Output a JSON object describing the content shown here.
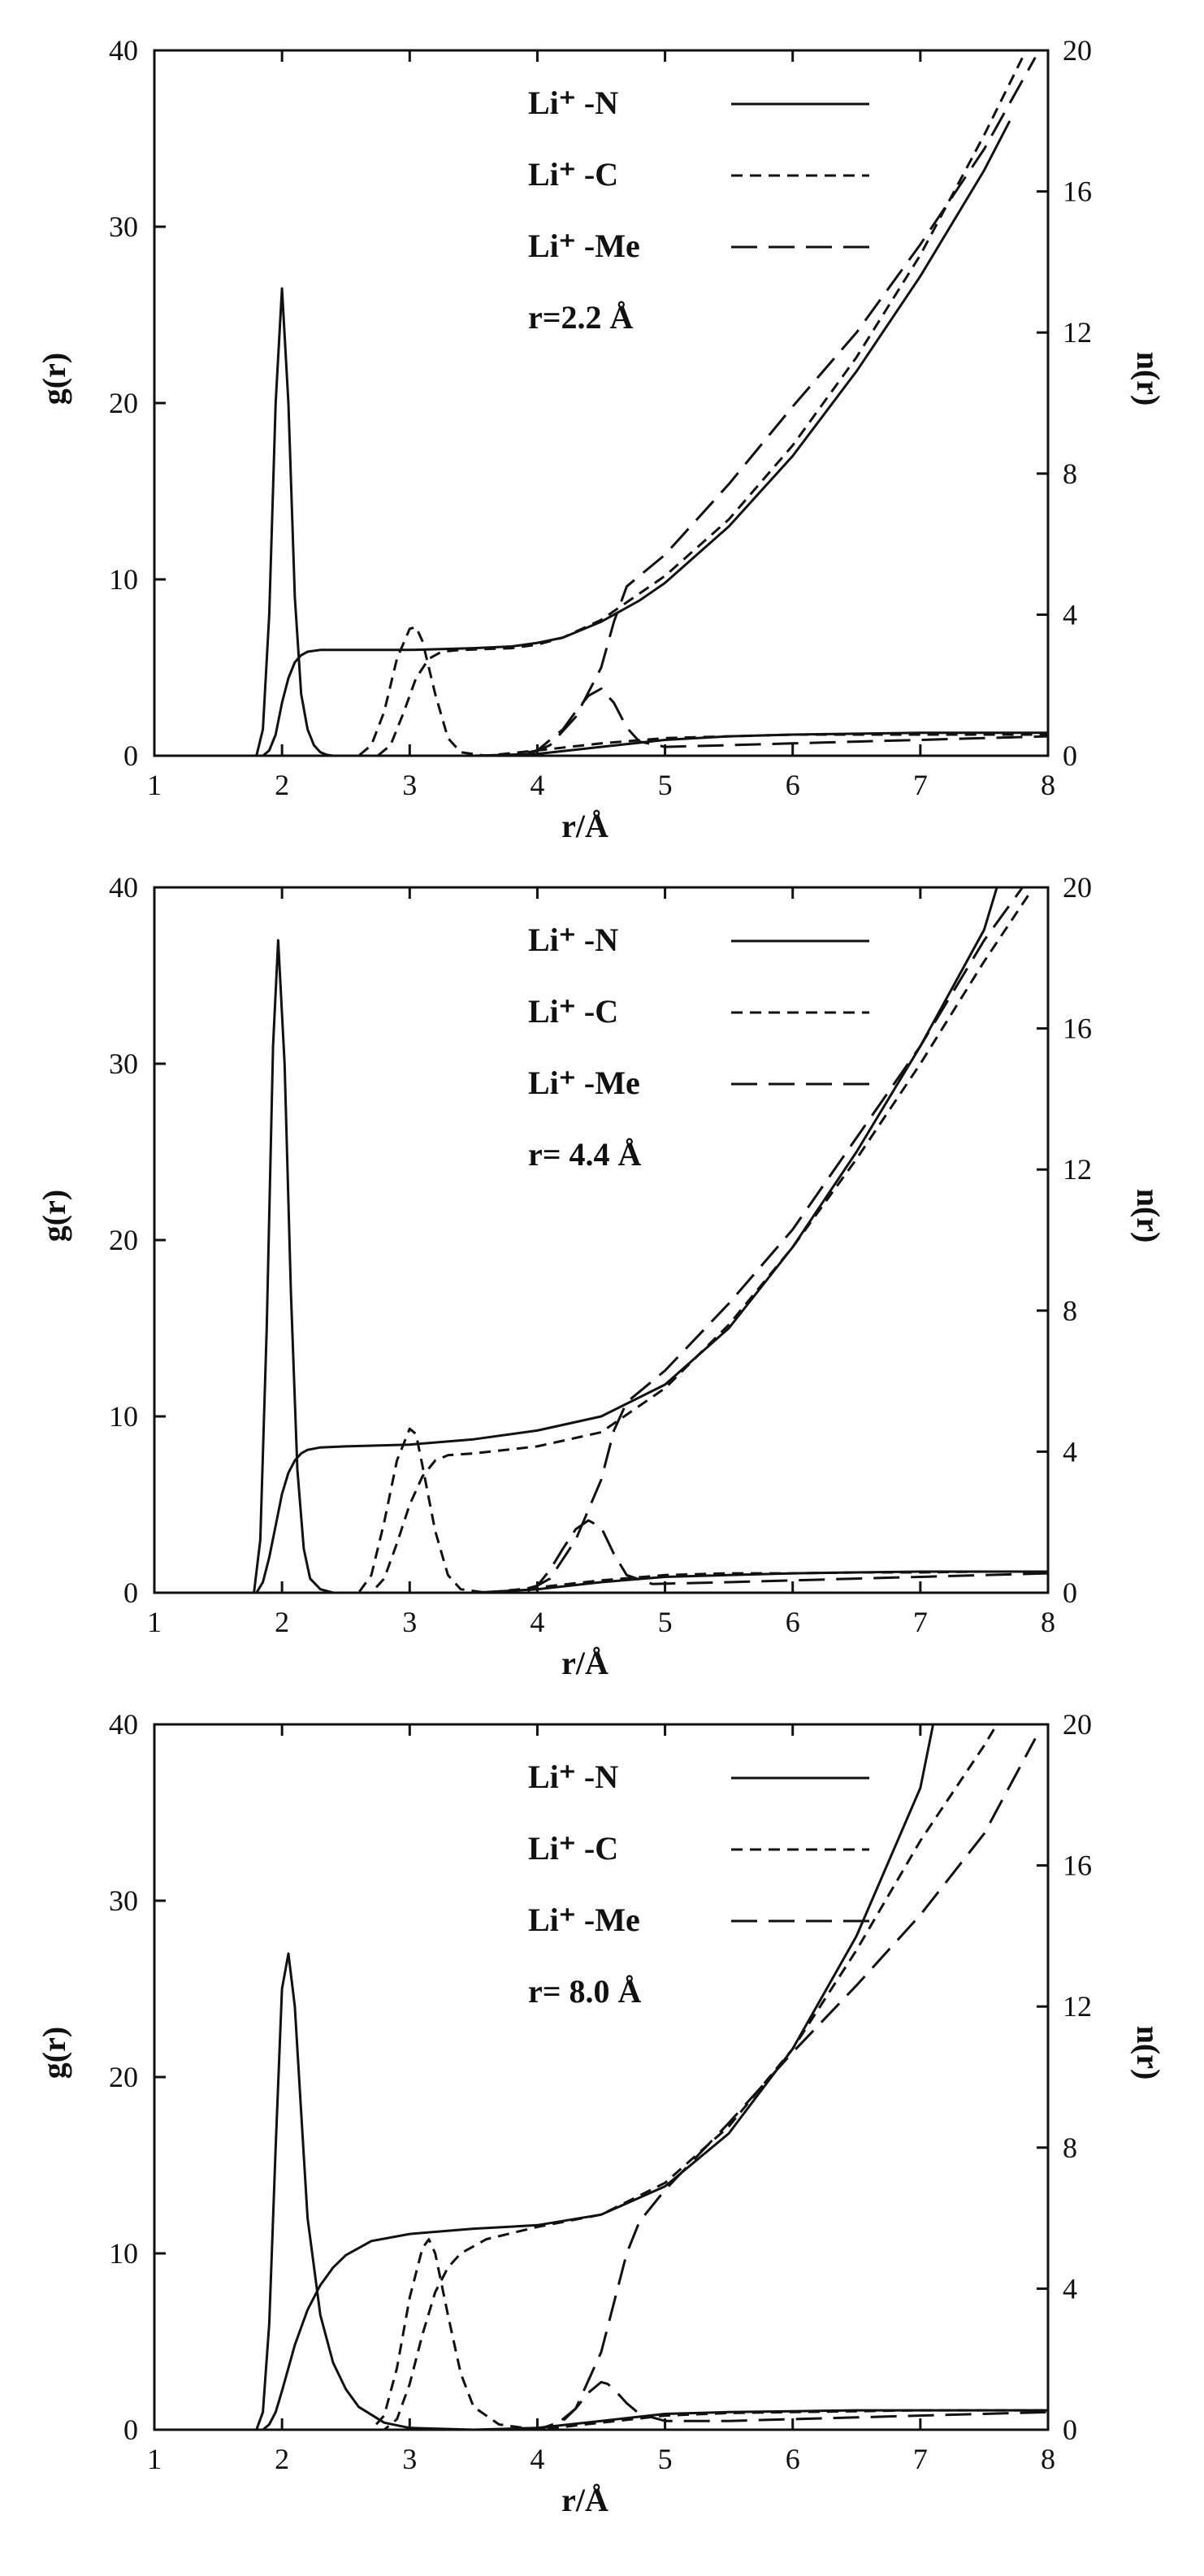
{
  "chart_data": [
    {
      "type": "line",
      "xlabel": "r/Å",
      "ylabel_left": "g(r)",
      "ylabel_right": "n(r)",
      "xlim": [
        1,
        8
      ],
      "ylim_left": [
        0,
        40
      ],
      "ylim_right": [
        0,
        20
      ],
      "x_ticks": [
        "1",
        "2",
        "3",
        "4",
        "5",
        "6",
        "7",
        "8"
      ],
      "y_left_ticks": [
        "0",
        "10",
        "20",
        "30",
        "40"
      ],
      "y_right_ticks": [
        "0",
        "4",
        "8",
        "12",
        "16",
        "20"
      ],
      "annotation": "r=2.2 Å",
      "grid": false,
      "legend_position": "top-center",
      "series": [
        {
          "name": "Li⁺ -N",
          "style": "solid",
          "axis": "left",
          "kind": "g(r)",
          "x": [
            1.0,
            1.8,
            1.85,
            1.9,
            1.95,
            2.0,
            2.05,
            2.1,
            2.15,
            2.2,
            2.25,
            2.3,
            2.35,
            2.4,
            2.5,
            2.6,
            3.0,
            3.5,
            4.0,
            4.5,
            5.0,
            5.5,
            6.0,
            6.5,
            7.0,
            7.5,
            8.0
          ],
          "y": [
            0,
            0,
            1.5,
            8,
            20,
            26.5,
            20,
            9,
            3.5,
            1.5,
            0.6,
            0.2,
            0.05,
            0,
            0,
            0,
            0,
            0,
            0.1,
            0.5,
            0.9,
            1.1,
            1.2,
            1.25,
            1.3,
            1.3,
            1.3
          ]
        },
        {
          "name": "Li⁺ -N",
          "style": "solid",
          "axis": "right",
          "kind": "n(r)",
          "x": [
            1.0,
            1.85,
            1.9,
            1.95,
            2.0,
            2.05,
            2.1,
            2.15,
            2.2,
            2.3,
            2.5,
            3.0,
            3.5,
            3.8,
            4.0,
            4.2,
            4.5,
            4.8,
            5.0,
            5.5,
            6.0,
            6.5,
            7.0,
            7.5,
            7.7
          ],
          "y": [
            0,
            0,
            0.15,
            0.6,
            1.5,
            2.2,
            2.65,
            2.85,
            2.95,
            3.0,
            3.0,
            3.0,
            3.05,
            3.1,
            3.2,
            3.35,
            3.8,
            4.4,
            4.9,
            6.5,
            8.5,
            10.9,
            13.6,
            16.6,
            18.0
          ]
        },
        {
          "name": "Li⁺ -C",
          "style": "short-dash",
          "axis": "left",
          "kind": "g(r)",
          "x": [
            1.0,
            2.6,
            2.7,
            2.8,
            2.9,
            3.0,
            3.05,
            3.1,
            3.2,
            3.3,
            3.4,
            3.6,
            4.0,
            4.5,
            5.0,
            5.5,
            6.0,
            6.5,
            7.0,
            7.5,
            8.0
          ],
          "y": [
            0,
            0,
            0.6,
            2.5,
            5.5,
            7.2,
            7.3,
            6.5,
            3.5,
            1.0,
            0.2,
            0,
            0.3,
            0.7,
            1.0,
            1.1,
            1.2,
            1.2,
            1.2,
            1.2,
            1.2
          ]
        },
        {
          "name": "Li⁺ -C",
          "style": "short-dash",
          "axis": "right",
          "kind": "n(r)",
          "x": [
            1.0,
            2.75,
            2.85,
            2.95,
            3.05,
            3.15,
            3.25,
            3.4,
            3.8,
            4.0,
            4.2,
            4.5,
            4.8,
            5.0,
            5.5,
            6.0,
            6.5,
            7.0,
            7.5,
            7.8
          ],
          "y": [
            0,
            0,
            0.3,
            1.2,
            2.2,
            2.75,
            2.95,
            3.0,
            3.05,
            3.15,
            3.35,
            3.85,
            4.6,
            5.1,
            6.7,
            8.8,
            11.3,
            14.2,
            17.6,
            19.8
          ]
        },
        {
          "name": "Li⁺ -Me",
          "style": "long-dash",
          "axis": "left",
          "kind": "g(r)",
          "x": [
            1.0,
            3.8,
            4.0,
            4.2,
            4.3,
            4.4,
            4.5,
            4.6,
            4.7,
            4.8,
            5.0,
            5.5,
            6.0,
            6.5,
            7.0,
            7.5,
            8.0
          ],
          "y": [
            0,
            0,
            0.3,
            1.5,
            2.5,
            3.4,
            3.8,
            3.0,
            1.6,
            0.8,
            0.5,
            0.6,
            0.7,
            0.8,
            0.9,
            1.0,
            1.1
          ]
        },
        {
          "name": "Li⁺ -Me",
          "style": "long-dash",
          "axis": "right",
          "kind": "n(r)",
          "x": [
            1.0,
            3.9,
            4.1,
            4.3,
            4.5,
            4.6,
            4.7,
            5.0,
            5.5,
            6.0,
            6.5,
            7.0,
            7.5,
            7.9
          ],
          "y": [
            0,
            0,
            0.3,
            1.1,
            2.5,
            3.8,
            4.8,
            5.7,
            7.7,
            9.9,
            12.0,
            14.5,
            17.2,
            19.8
          ]
        }
      ]
    },
    {
      "type": "line",
      "xlabel": "r/Å",
      "ylabel_left": "g(r)",
      "ylabel_right": "n(r)",
      "xlim": [
        1,
        8
      ],
      "ylim_left": [
        0,
        40
      ],
      "ylim_right": [
        0,
        20
      ],
      "x_ticks": [
        "1",
        "2",
        "3",
        "4",
        "5",
        "6",
        "7",
        "8"
      ],
      "y_left_ticks": [
        "0",
        "10",
        "20",
        "30",
        "40"
      ],
      "y_right_ticks": [
        "0",
        "4",
        "8",
        "12",
        "16",
        "20"
      ],
      "annotation": "r= 4.4 Å",
      "grid": false,
      "legend_position": "top-center",
      "series": [
        {
          "name": "Li⁺ -N",
          "style": "solid",
          "axis": "left",
          "kind": "g(r)",
          "x": [
            1.0,
            1.78,
            1.83,
            1.88,
            1.93,
            1.97,
            2.02,
            2.07,
            2.12,
            2.17,
            2.22,
            2.3,
            2.4,
            2.5,
            3.0,
            3.5,
            4.0,
            4.5,
            5.0,
            5.5,
            6.0,
            6.5,
            7.0,
            7.5,
            8.0
          ],
          "y": [
            0,
            0,
            3,
            15,
            31,
            37,
            30,
            17,
            7,
            2.5,
            0.8,
            0.2,
            0,
            0,
            0,
            0,
            0.2,
            0.6,
            0.9,
            1.0,
            1.1,
            1.15,
            1.2,
            1.2,
            1.2
          ]
        },
        {
          "name": "Li⁺ -N",
          "style": "solid",
          "axis": "right",
          "kind": "n(r)",
          "x": [
            1.0,
            1.8,
            1.85,
            1.9,
            1.95,
            2.0,
            2.05,
            2.1,
            2.15,
            2.2,
            2.3,
            2.5,
            3.0,
            3.5,
            4.0,
            4.5,
            5.0,
            5.5,
            6.0,
            6.5,
            7.0,
            7.5,
            7.6
          ],
          "y": [
            0,
            0,
            0.3,
            1.0,
            1.9,
            2.8,
            3.4,
            3.75,
            3.95,
            4.05,
            4.12,
            4.15,
            4.2,
            4.35,
            4.6,
            5.0,
            5.9,
            7.5,
            9.8,
            12.5,
            15.5,
            18.8,
            20.0
          ]
        },
        {
          "name": "Li⁺ -C",
          "style": "short-dash",
          "axis": "left",
          "kind": "g(r)",
          "x": [
            1.0,
            2.6,
            2.7,
            2.8,
            2.9,
            3.0,
            3.05,
            3.1,
            3.2,
            3.3,
            3.4,
            3.6,
            4.0,
            4.5,
            5.0,
            5.5,
            6.0,
            6.5,
            7.0,
            7.5,
            8.0
          ],
          "y": [
            0,
            0,
            1.0,
            4.0,
            7.5,
            9.3,
            9.0,
            7.2,
            3.5,
            1.0,
            0.2,
            0,
            0.3,
            0.7,
            1.0,
            1.1,
            1.1,
            1.15,
            1.15,
            1.2,
            1.2
          ]
        },
        {
          "name": "Li⁺ -C",
          "style": "short-dash",
          "axis": "right",
          "kind": "n(r)",
          "x": [
            1.0,
            2.7,
            2.8,
            2.9,
            3.0,
            3.1,
            3.2,
            3.3,
            3.5,
            4.0,
            4.5,
            5.0,
            5.5,
            6.0,
            6.5,
            7.0,
            7.5,
            7.85
          ],
          "y": [
            0,
            0,
            0.4,
            1.4,
            2.5,
            3.3,
            3.75,
            3.9,
            3.95,
            4.15,
            4.55,
            5.8,
            7.6,
            9.8,
            12.3,
            15.0,
            17.9,
            19.8
          ]
        },
        {
          "name": "Li⁺ -Me",
          "style": "long-dash",
          "axis": "left",
          "kind": "g(r)",
          "x": [
            1.0,
            3.8,
            4.0,
            4.1,
            4.2,
            4.3,
            4.4,
            4.5,
            4.6,
            4.7,
            4.9,
            5.5,
            6.0,
            6.5,
            7.0,
            7.5,
            8.0
          ],
          "y": [
            0,
            0,
            0.4,
            1.3,
            2.5,
            3.6,
            4.1,
            3.7,
            2.2,
            1.0,
            0.5,
            0.6,
            0.7,
            0.8,
            0.9,
            1.0,
            1.1
          ]
        },
        {
          "name": "Li⁺ -Me",
          "style": "long-dash",
          "axis": "right",
          "kind": "n(r)",
          "x": [
            1.0,
            3.9,
            4.1,
            4.3,
            4.5,
            4.6,
            4.7,
            5.0,
            5.5,
            6.0,
            6.5,
            7.0,
            7.5,
            7.8
          ],
          "y": [
            0,
            0,
            0.4,
            1.5,
            3.2,
            4.6,
            5.4,
            6.3,
            8.2,
            10.3,
            12.9,
            15.5,
            18.5,
            20.0
          ]
        }
      ]
    },
    {
      "type": "line",
      "xlabel": "r/Å",
      "ylabel_left": "g(r)",
      "ylabel_right": "n(r)",
      "xlim": [
        1,
        8
      ],
      "ylim_left": [
        0,
        40
      ],
      "ylim_right": [
        0,
        20
      ],
      "x_ticks": [
        "1",
        "2",
        "3",
        "4",
        "5",
        "6",
        "7",
        "8"
      ],
      "y_left_ticks": [
        "0",
        "10",
        "20",
        "30",
        "40"
      ],
      "y_right_ticks": [
        "0",
        "4",
        "8",
        "12",
        "16",
        "20"
      ],
      "annotation": "r= 8.0 Å",
      "grid": false,
      "legend_position": "top-center",
      "series": [
        {
          "name": "Li⁺ -N",
          "style": "solid",
          "axis": "left",
          "kind": "g(r)",
          "x": [
            1.0,
            1.8,
            1.85,
            1.9,
            1.95,
            2.0,
            2.05,
            2.1,
            2.15,
            2.2,
            2.3,
            2.4,
            2.5,
            2.6,
            2.8,
            3.0,
            3.5,
            4.0,
            4.5,
            5.0,
            5.5,
            6.0,
            6.5,
            7.0,
            7.5,
            8.0
          ],
          "y": [
            0,
            0,
            1.0,
            6.0,
            16.0,
            25.0,
            27.0,
            24.0,
            18.0,
            12.0,
            6.5,
            3.8,
            2.3,
            1.3,
            0.4,
            0.1,
            0,
            0.1,
            0.5,
            0.9,
            1.0,
            1.05,
            1.1,
            1.1,
            1.1,
            1.1
          ]
        },
        {
          "name": "Li⁺ -N",
          "style": "solid",
          "axis": "right",
          "kind": "n(r)",
          "x": [
            1.0,
            1.85,
            1.9,
            1.95,
            2.0,
            2.1,
            2.2,
            2.3,
            2.4,
            2.5,
            2.7,
            3.0,
            3.5,
            4.0,
            4.5,
            5.0,
            5.5,
            6.0,
            6.5,
            7.0,
            7.1
          ],
          "y": [
            0,
            0,
            0.15,
            0.5,
            1.1,
            2.4,
            3.4,
            4.1,
            4.6,
            4.95,
            5.35,
            5.55,
            5.7,
            5.8,
            6.1,
            6.9,
            8.4,
            10.8,
            14.0,
            18.2,
            20.0
          ]
        },
        {
          "name": "Li⁺ -C",
          "style": "short-dash",
          "axis": "left",
          "kind": "g(r)",
          "x": [
            1.0,
            2.7,
            2.8,
            2.9,
            3.0,
            3.1,
            3.15,
            3.2,
            3.3,
            3.4,
            3.5,
            3.7,
            4.0,
            4.5,
            5.0,
            5.5,
            6.0,
            6.5,
            7.0,
            7.5,
            8.0
          ],
          "y": [
            0,
            0,
            0.8,
            3.5,
            7.5,
            10.3,
            10.8,
            10.0,
            6.5,
            3.2,
            1.3,
            0.3,
            0,
            0.4,
            0.8,
            0.95,
            1.0,
            1.05,
            1.1,
            1.1,
            1.1
          ]
        },
        {
          "name": "Li⁺ -C",
          "style": "short-dash",
          "axis": "right",
          "kind": "n(r)",
          "x": [
            1.0,
            2.8,
            2.9,
            3.0,
            3.1,
            3.2,
            3.3,
            3.4,
            3.6,
            4.0,
            4.5,
            5.0,
            5.5,
            6.0,
            6.5,
            7.0,
            7.5,
            7.6
          ],
          "y": [
            0,
            0,
            0.3,
            1.3,
            2.7,
            3.9,
            4.6,
            5.0,
            5.4,
            5.75,
            6.1,
            7.0,
            8.6,
            10.8,
            13.6,
            16.7,
            19.4,
            20.0
          ]
        },
        {
          "name": "Li⁺ -Me",
          "style": "long-dash",
          "axis": "left",
          "kind": "g(r)",
          "x": [
            1.0,
            4.0,
            4.2,
            4.3,
            4.4,
            4.5,
            4.55,
            4.6,
            4.7,
            4.8,
            5.0,
            5.5,
            6.0,
            6.5,
            7.0,
            7.5,
            8.0
          ],
          "y": [
            0,
            0,
            0.5,
            1.2,
            2.1,
            2.7,
            2.6,
            2.3,
            1.5,
            0.9,
            0.5,
            0.5,
            0.6,
            0.7,
            0.8,
            0.9,
            1.0
          ]
        },
        {
          "name": "Li⁺ -Me",
          "style": "long-dash",
          "axis": "right",
          "kind": "n(r)",
          "x": [
            1.0,
            4.1,
            4.3,
            4.5,
            4.6,
            4.7,
            4.8,
            5.0,
            5.5,
            6.0,
            6.5,
            7.0,
            7.5,
            7.9
          ],
          "y": [
            0,
            0,
            0.6,
            2.2,
            3.6,
            5.0,
            5.9,
            6.8,
            8.7,
            10.7,
            12.6,
            14.6,
            16.9,
            19.6
          ]
        }
      ]
    }
  ]
}
